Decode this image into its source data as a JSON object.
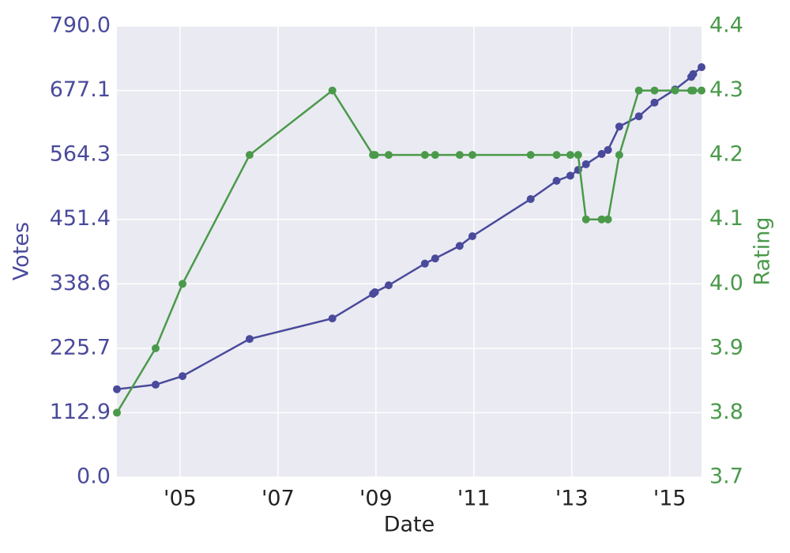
{
  "chart_data": {
    "type": "line",
    "x_label": "Date",
    "y_label": "Votes",
    "y2_label": "Rating",
    "x": [
      2003.71,
      2004.5,
      2005.05,
      2006.42,
      2008.11,
      2008.94,
      2008.98,
      2009.26,
      2010.0,
      2010.21,
      2010.71,
      2010.97,
      2012.16,
      2012.69,
      2012.97,
      2013.13,
      2013.29,
      2013.61,
      2013.74,
      2013.97,
      2014.37,
      2014.69,
      2015.11,
      2015.44,
      2015.48,
      2015.65
    ],
    "series": [
      {
        "name": "Votes",
        "color": "#4a4a9c",
        "values": [
          154,
          162,
          177,
          242,
          278,
          321,
          324,
          336,
          374,
          383,
          405,
          422,
          487,
          519,
          528,
          538,
          548,
          566,
          573,
          614,
          632,
          656,
          679,
          701,
          706,
          718
        ]
      },
      {
        "name": "Rating",
        "color": "#4a9a4a",
        "axis": "y2",
        "values": [
          3.8,
          3.9,
          4.0,
          4.2,
          4.3,
          4.2,
          4.2,
          4.2,
          4.2,
          4.2,
          4.2,
          4.2,
          4.2,
          4.2,
          4.2,
          4.2,
          4.1,
          4.1,
          4.1,
          4.2,
          4.3,
          4.3,
          4.3,
          4.3,
          4.3,
          4.3
        ]
      }
    ],
    "xlim": [
      2003.71,
      2015.65
    ],
    "xticks": [
      {
        "value": 2005,
        "label": "'05"
      },
      {
        "value": 2007,
        "label": "'07"
      },
      {
        "value": 2009,
        "label": "'09"
      },
      {
        "value": 2011,
        "label": "'11"
      },
      {
        "value": 2013,
        "label": "'13"
      },
      {
        "value": 2015,
        "label": "'15"
      }
    ],
    "ylim": [
      0,
      790
    ],
    "yticks": [
      {
        "value": 0,
        "label": "0.0"
      },
      {
        "value": 112.86,
        "label": "112.9"
      },
      {
        "value": 225.71,
        "label": "225.7"
      },
      {
        "value": 338.57,
        "label": "338.6"
      },
      {
        "value": 451.43,
        "label": "451.4"
      },
      {
        "value": 564.29,
        "label": "564.3"
      },
      {
        "value": 677.14,
        "label": "677.1"
      },
      {
        "value": 790,
        "label": "790.0"
      }
    ],
    "y2lim": [
      3.7,
      4.4
    ],
    "y2ticks": [
      3.7,
      3.8,
      3.9,
      {
        "value": 4.0,
        "label": "4.0"
      },
      4.1,
      4.2,
      4.3,
      4.4
    ],
    "grid": true
  }
}
